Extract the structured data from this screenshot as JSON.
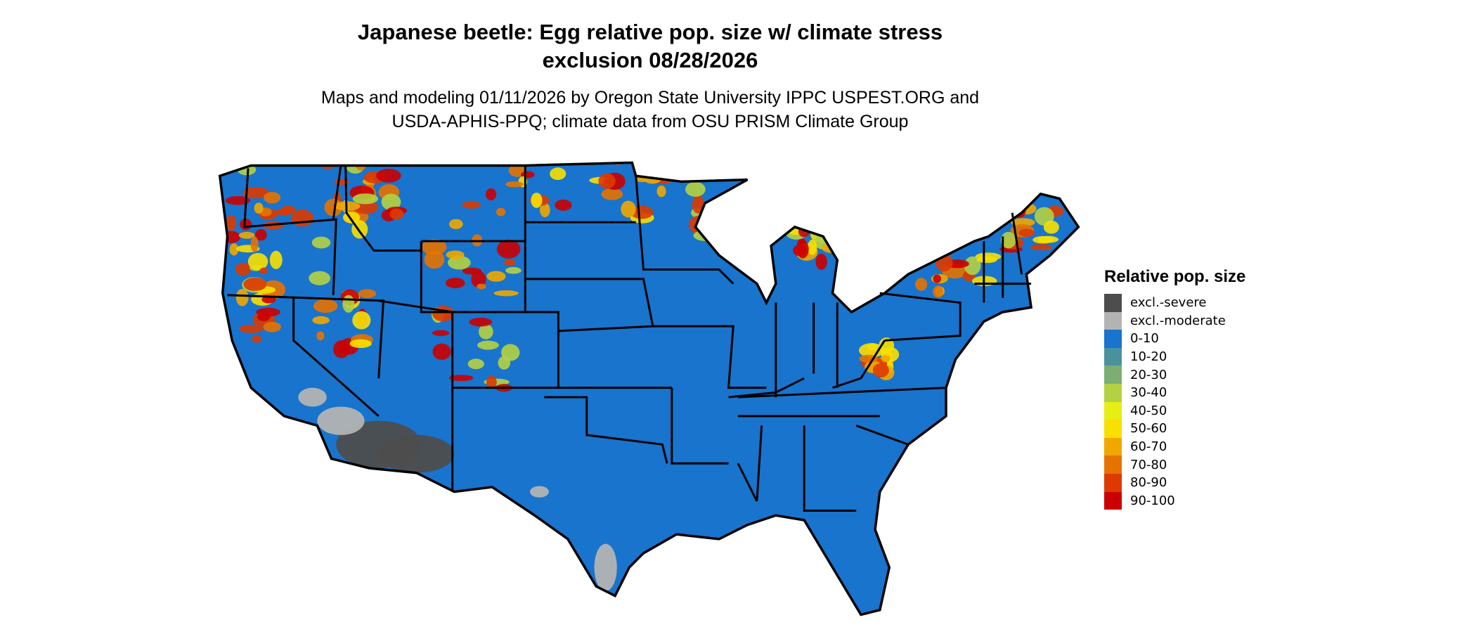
{
  "title": {
    "line1": "Japanese beetle: Egg relative pop. size w/ climate stress",
    "line2": "exclusion 08/28/2026"
  },
  "subtitle": {
    "line1": "Maps and modeling 01/11/2026 by Oregon State University IPPC USPEST.ORG and",
    "line2": "USDA-APHIS-PPQ; climate data from OSU PRISM Climate Group"
  },
  "legend": {
    "title": "Relative pop. size",
    "items": [
      {
        "label": "excl.-severe",
        "color": "#4d4d4d"
      },
      {
        "label": "excl.-moderate",
        "color": "#b3b3b3"
      },
      {
        "label": "0-10",
        "color": "#1874cd"
      },
      {
        "label": "10-20",
        "color": "#4a919e"
      },
      {
        "label": "20-30",
        "color": "#7cae72"
      },
      {
        "label": "30-40",
        "color": "#b4d143"
      },
      {
        "label": "40-50",
        "color": "#e6ee14"
      },
      {
        "label": "50-60",
        "color": "#f8e000"
      },
      {
        "label": "60-70",
        "color": "#f0a800"
      },
      {
        "label": "70-80",
        "color": "#e67300"
      },
      {
        "label": "80-90",
        "color": "#dd3a00"
      },
      {
        "label": "90-100",
        "color": "#cc0000"
      }
    ]
  },
  "map": {
    "region": "Contiguous United States",
    "base_color": "#1874cd",
    "border_color": "#000000"
  }
}
